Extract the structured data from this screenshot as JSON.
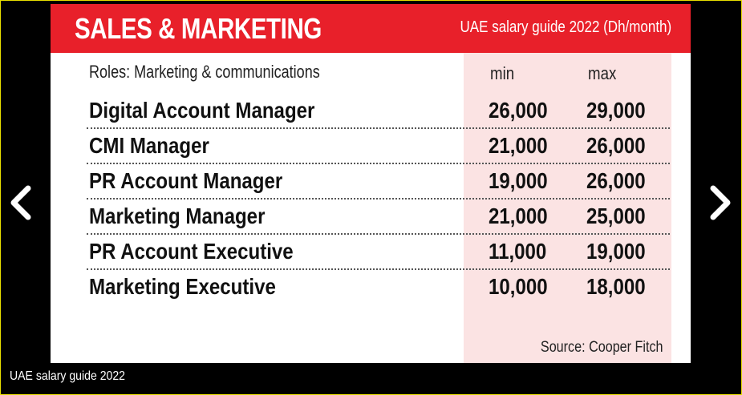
{
  "header": {
    "title": "SALES & MARKETING",
    "subtitle": "UAE salary guide 2022 (Dh/month)"
  },
  "table": {
    "columns": {
      "roles": "Roles: Marketing & communications",
      "min": "min",
      "max": "max"
    },
    "rows": [
      {
        "role": "Digital Account Manager",
        "min": "26,000",
        "max": "29,000"
      },
      {
        "role": "CMI Manager",
        "min": "21,000",
        "max": "26,000"
      },
      {
        "role": "PR Account Manager",
        "min": "19,000",
        "max": "26,000"
      },
      {
        "role": "Marketing Manager",
        "min": "21,000",
        "max": "25,000"
      },
      {
        "role": "PR Account Executive",
        "min": "11,000",
        "max": "19,000"
      },
      {
        "role": "Marketing Executive",
        "min": "10,000",
        "max": "18,000"
      }
    ],
    "source": "Source: Cooper Fitch"
  },
  "caption": "UAE salary guide 2022",
  "icons": {
    "prev": "chevron-left-icon",
    "next": "chevron-right-icon"
  },
  "colors": {
    "header_bg": "#e8202a",
    "highlight_column": "#fbe3e3",
    "frame_border": "#e8e000"
  }
}
